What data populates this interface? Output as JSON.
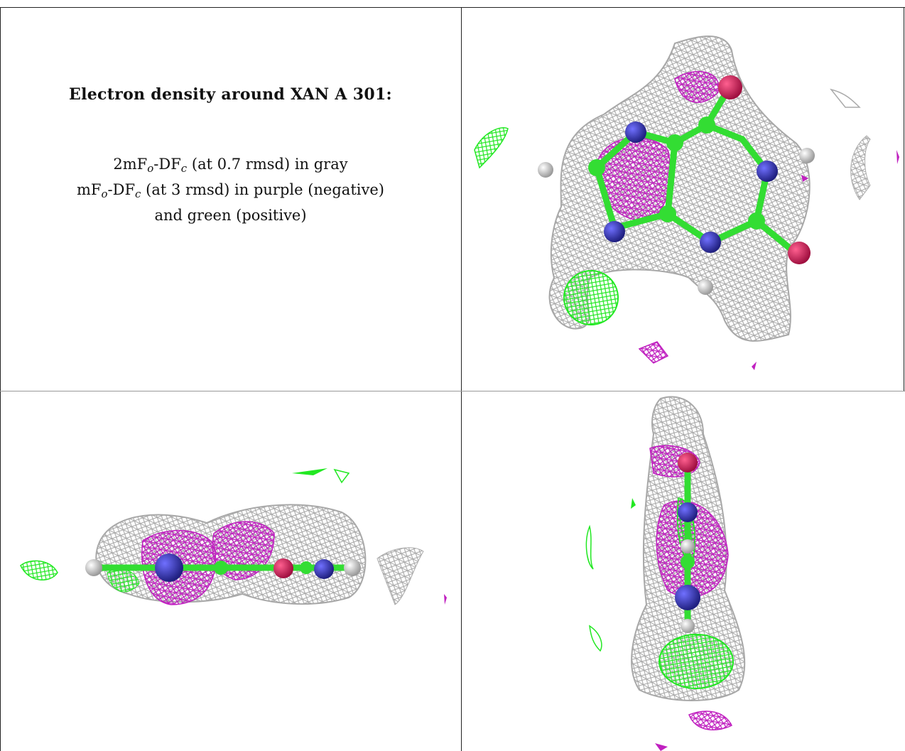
{
  "caption": {
    "title": "Electron density around XAN A 301:",
    "line1": {
      "pre": "2mF",
      "sub1": "o",
      "mid": "-DF",
      "sub2": "c",
      "post": " (at 0.7 rmsd) in gray"
    },
    "line2": {
      "pre": "mF",
      "sub1": "o",
      "mid": "-DF",
      "sub2": "c",
      "post": " (at 3 rmsd) in purple (negative)"
    },
    "line3": "and green (positive)"
  },
  "colors": {
    "mesh_gray": "#b4b4b4",
    "negative_purple": "#c020c0",
    "positive_green": "#22e822",
    "carbon": "#33dd33",
    "nitrogen": "#3a3ab8",
    "oxygen": "#e0205a",
    "hydrogen": "#e8e8e8",
    "border": "#222222"
  },
  "views": [
    "top-view",
    "side-view",
    "edge-view"
  ]
}
